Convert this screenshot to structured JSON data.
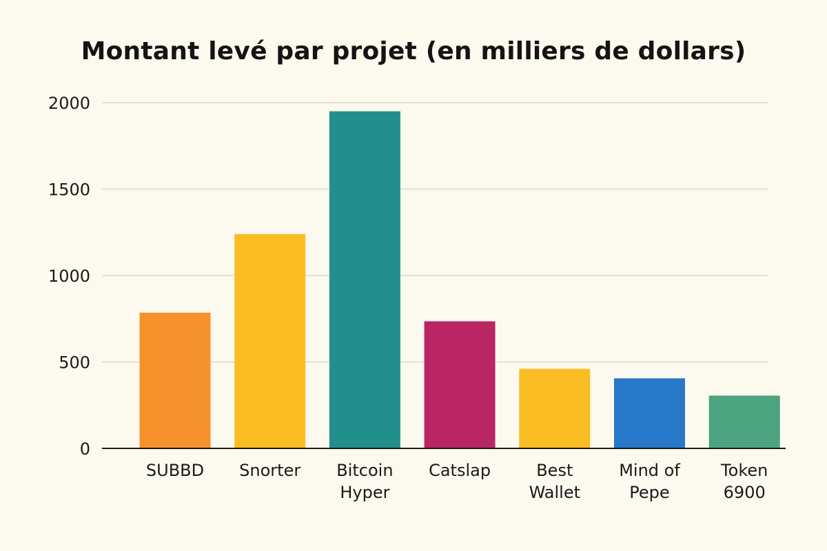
{
  "chart_data": {
    "type": "bar",
    "title": "Montant levé par projet (en milliers de dollars)",
    "xlabel": "",
    "ylabel": "",
    "categories": [
      "SUBBD",
      "Snorter",
      "Bitcoin Hyper",
      "Catslap",
      "Best Wallet",
      "Mind of Pepe",
      "Token 6900"
    ],
    "category_lines": [
      [
        "SUBBD"
      ],
      [
        "Snorter"
      ],
      [
        "Bitcoin",
        "Hyper"
      ],
      [
        "Catslap"
      ],
      [
        "Best",
        "Wallet"
      ],
      [
        "Mind of",
        "Pepe"
      ],
      [
        "Token",
        "6900"
      ]
    ],
    "values": [
      785,
      1240,
      1950,
      735,
      460,
      405,
      305
    ],
    "colors": [
      "#f6922e",
      "#fbbd24",
      "#238f8d",
      "#ba2664",
      "#fbbd24",
      "#2878c9",
      "#4ba380"
    ],
    "ylim": [
      0,
      2000
    ],
    "yticks": [
      0,
      500,
      1000,
      1500,
      2000
    ],
    "grid": true,
    "legend": "none"
  }
}
